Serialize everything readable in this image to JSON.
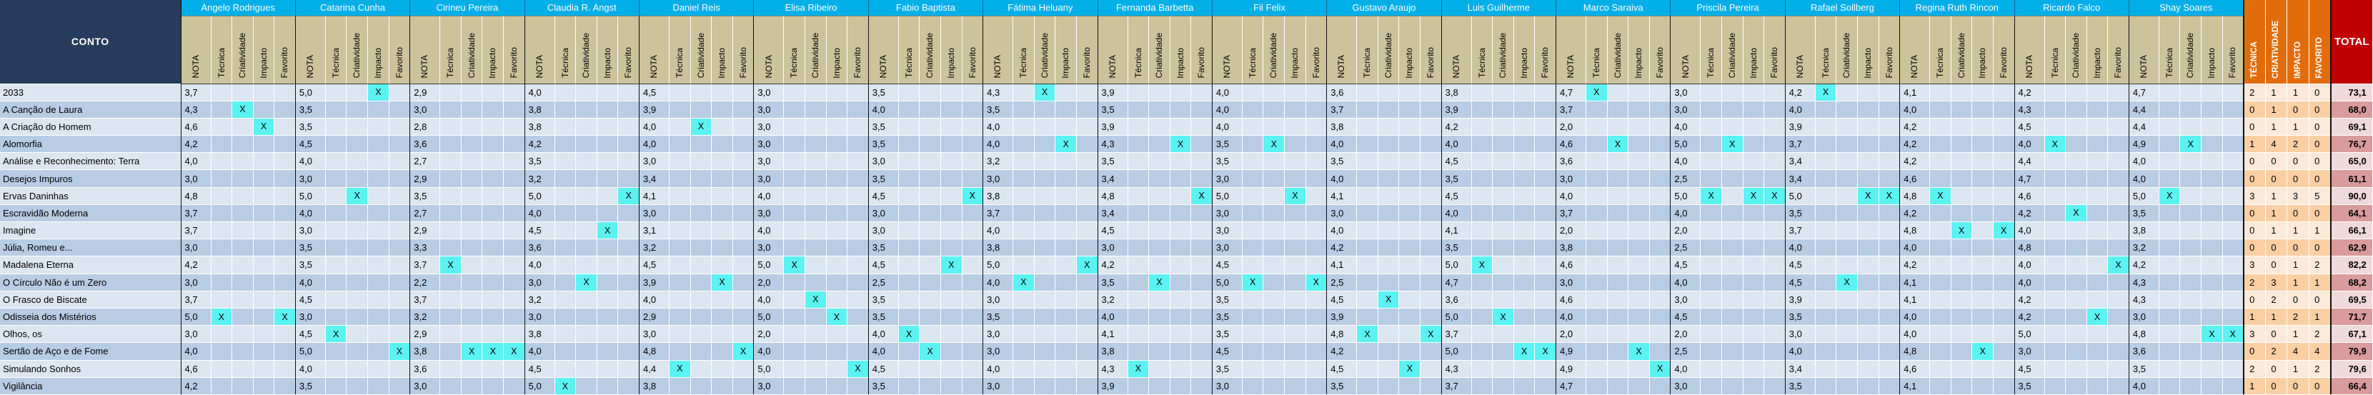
{
  "colors": {
    "header_blue": "#00AEE8",
    "conto_navy": "#263C5D",
    "subheader_tan": "#CBC39C",
    "row_light": "#DCE6F1",
    "row_dark": "#B8CCE4",
    "mark_cyan": "#5BF2F2",
    "summary_orange": "#E36C0A",
    "summary_light": "#FDE9D9",
    "summary_dark": "#FBCFA4",
    "total_red": "#C00000",
    "total_light": "#F0D9DA",
    "total_dark": "#D99B9B"
  },
  "table": {
    "conto_header": "CONTO",
    "mark_glyph": "X",
    "sub_columns": [
      "NOTA",
      "Técnica",
      "Criatividade",
      "Impacto",
      "Favorito"
    ],
    "judges": [
      "Angelo Rodrigues",
      "Catarina Cunha",
      "Cirineu Pereira",
      "Claudia R. Angst",
      "Daniel Reis",
      "Elisa Ribeiro",
      "Fabio Baptista",
      "Fátima Heluany",
      "Fernanda Barbetta",
      "Fil Felix",
      "Gustavo Araujo",
      "Luis Guilherme",
      "Marco Saraiva",
      "Priscila Pereira",
      "Rafael Sollberg",
      "Regina Ruth Rincon",
      "Ricardo Falco",
      "Shay Soares"
    ],
    "summary_columns": [
      "TÉCNICA",
      "CRIATIVIDADE",
      "IMPACTO",
      "FAVORITO"
    ],
    "total_header": "TOTAL",
    "rows": [
      {
        "conto": "2033",
        "notas": [
          "3,7",
          "5,0",
          "2,9",
          "4,0",
          "4,5",
          "3,0",
          "3,5",
          "4,3",
          "3,9",
          "4,0",
          "3,6",
          "3,8",
          "4,7",
          "3,0",
          "4,2",
          "4,1",
          "4,2",
          "4,7"
        ],
        "marks": [
          "",
          "I",
          "",
          "",
          "",
          "",
          "",
          "C",
          "",
          "",
          "",
          "",
          "T",
          "",
          "T",
          "",
          "",
          ""
        ],
        "counts": [
          2,
          1,
          1,
          0
        ],
        "total": "73,1"
      },
      {
        "conto": "A Canção de Laura",
        "notas": [
          "4,3",
          "3,5",
          "3,0",
          "3,8",
          "3,9",
          "3,0",
          "4,0",
          "3,5",
          "3,5",
          "4,0",
          "3,7",
          "3,9",
          "3,7",
          "3,0",
          "4,0",
          "4,0",
          "4,3",
          "4,4"
        ],
        "marks": [
          "C",
          "",
          "",
          "",
          "",
          "",
          "",
          "",
          "",
          "",
          "",
          "",
          "",
          "",
          "",
          "",
          "",
          ""
        ],
        "counts": [
          0,
          1,
          0,
          0
        ],
        "total": "68,0"
      },
      {
        "conto": "A Criação do Homem",
        "notas": [
          "4,6",
          "3,5",
          "2,8",
          "3,8",
          "4,0",
          "3,0",
          "3,5",
          "4,0",
          "3,9",
          "4,0",
          "3,8",
          "4,2",
          "2,0",
          "4,0",
          "3,9",
          "4,2",
          "4,5",
          "4,4"
        ],
        "marks": [
          "I",
          "",
          "",
          "",
          "C",
          "",
          "",
          "",
          "",
          "",
          "",
          "",
          "",
          "",
          "",
          "",
          "",
          ""
        ],
        "counts": [
          0,
          1,
          1,
          0
        ],
        "total": "69,1"
      },
      {
        "conto": "Alomorfia",
        "notas": [
          "4,2",
          "4,5",
          "3,6",
          "4,2",
          "4,0",
          "3,0",
          "3,5",
          "4,0",
          "4,3",
          "3,5",
          "4,0",
          "4,0",
          "4,6",
          "5,0",
          "3,7",
          "4,2",
          "4,0",
          "4,9"
        ],
        "marks": [
          "",
          "",
          "",
          "",
          "",
          "",
          "",
          "I",
          "I",
          "C",
          "",
          "",
          "C",
          "C",
          "",
          "",
          "T",
          "C"
        ],
        "counts": [
          1,
          4,
          2,
          0
        ],
        "total": "76,7"
      },
      {
        "conto": "Análise e Reconhecimento: Terra",
        "notas": [
          "4,0",
          "4,0",
          "2,7",
          "3,5",
          "3,0",
          "3,0",
          "3,0",
          "3,2",
          "3,5",
          "3,5",
          "3,5",
          "4,5",
          "3,6",
          "4,0",
          "3,4",
          "4,2",
          "4,4",
          "4,0"
        ],
        "marks": [
          "",
          "",
          "",
          "",
          "",
          "",
          "",
          "",
          "",
          "",
          "",
          "",
          "",
          "",
          "",
          "",
          "",
          ""
        ],
        "counts": [
          0,
          0,
          0,
          0
        ],
        "total": "65,0"
      },
      {
        "conto": "Desejos Impuros",
        "notas": [
          "3,0",
          "3,0",
          "2,9",
          "3,2",
          "3,4",
          "3,0",
          "3,5",
          "3,0",
          "3,4",
          "3,0",
          "4,0",
          "3,5",
          "3,0",
          "2,5",
          "3,4",
          "4,6",
          "4,7",
          "4,0"
        ],
        "marks": [
          "",
          "",
          "",
          "",
          "",
          "",
          "",
          "",
          "",
          "",
          "",
          "",
          "",
          "",
          "",
          "",
          "",
          ""
        ],
        "counts": [
          0,
          0,
          0,
          0
        ],
        "total": "61,1"
      },
      {
        "conto": "Ervas Daninhas",
        "notas": [
          "4,8",
          "5,0",
          "3,5",
          "5,0",
          "4,1",
          "4,0",
          "4,5",
          "3,8",
          "4,8",
          "5,0",
          "4,1",
          "4,5",
          "4,0",
          "5,0",
          "5,0",
          "4,8",
          "4,6",
          "5,0"
        ],
        "marks": [
          "",
          "C",
          "",
          "F",
          "",
          "",
          "F",
          "",
          "F",
          "I",
          "",
          "",
          "",
          "TIF",
          "IF",
          "T",
          "",
          "T"
        ],
        "counts": [
          3,
          1,
          3,
          5
        ],
        "total": "90,0"
      },
      {
        "conto": "Escravidão Moderna",
        "notas": [
          "3,7",
          "4,0",
          "2,7",
          "4,0",
          "3,0",
          "3,0",
          "3,0",
          "3,7",
          "3,4",
          "3,0",
          "3,0",
          "4,0",
          "3,7",
          "4,0",
          "3,5",
          "4,2",
          "4,2",
          "3,5"
        ],
        "marks": [
          "",
          "",
          "",
          "",
          "",
          "",
          "",
          "",
          "",
          "",
          "",
          "",
          "",
          "",
          "",
          "",
          "C",
          ""
        ],
        "counts": [
          0,
          1,
          0,
          0
        ],
        "total": "64,1"
      },
      {
        "conto": "Imagine",
        "notas": [
          "3,7",
          "3,0",
          "2,9",
          "4,5",
          "3,1",
          "4,0",
          "3,0",
          "4,0",
          "4,5",
          "3,0",
          "4,0",
          "4,1",
          "2,0",
          "2,0",
          "3,7",
          "4,8",
          "4,0",
          "3,8"
        ],
        "marks": [
          "",
          "",
          "",
          "I",
          "",
          "",
          "",
          "",
          "",
          "",
          "",
          "",
          "",
          "",
          "",
          "CF",
          "",
          ""
        ],
        "counts": [
          0,
          1,
          1,
          1
        ],
        "total": "66,1"
      },
      {
        "conto": "Júlia, Romeu e...",
        "notas": [
          "3,0",
          "3,5",
          "3,3",
          "3,6",
          "3,2",
          "3,0",
          "3,5",
          "3,8",
          "3,0",
          "3,0",
          "4,2",
          "3,5",
          "3,8",
          "2,5",
          "4,0",
          "4,0",
          "4,8",
          "3,2"
        ],
        "marks": [
          "",
          "",
          "",
          "",
          "",
          "",
          "",
          "",
          "",
          "",
          "",
          "",
          "",
          "",
          "",
          "",
          "",
          ""
        ],
        "counts": [
          0,
          0,
          0,
          0
        ],
        "total": "62,9"
      },
      {
        "conto": "Madalena Eterna",
        "notas": [
          "4,2",
          "3,5",
          "3,7",
          "4,0",
          "4,5",
          "5,0",
          "4,5",
          "5,0",
          "4,2",
          "4,5",
          "4,1",
          "5,0",
          "4,6",
          "4,5",
          "4,5",
          "4,2",
          "4,0",
          "4,2"
        ],
        "marks": [
          "",
          "",
          "T",
          "",
          "",
          "T",
          "I",
          "F",
          "",
          "",
          "",
          "T",
          "",
          "",
          "",
          "",
          "F",
          ""
        ],
        "counts": [
          3,
          0,
          1,
          2
        ],
        "total": "82,2"
      },
      {
        "conto": "O Círculo Não é um Zero",
        "notas": [
          "3,0",
          "4,0",
          "2,2",
          "3,0",
          "3,9",
          "2,0",
          "2,5",
          "4,0",
          "3,5",
          "5,0",
          "2,5",
          "4,7",
          "3,0",
          "4,0",
          "4,5",
          "4,1",
          "4,0",
          "4,3"
        ],
        "marks": [
          "",
          "",
          "",
          "C",
          "I",
          "",
          "",
          "T",
          "C",
          "TF",
          "",
          "",
          "",
          "",
          "C",
          "",
          "",
          ""
        ],
        "counts": [
          2,
          3,
          1,
          1
        ],
        "total": "68,2"
      },
      {
        "conto": "O Frasco de Biscate",
        "notas": [
          "3,7",
          "4,5",
          "3,7",
          "3,2",
          "4,0",
          "4,0",
          "3,5",
          "3,0",
          "3,2",
          "3,5",
          "4,5",
          "3,6",
          "4,6",
          "3,0",
          "3,9",
          "4,1",
          "4,2",
          "4,3"
        ],
        "marks": [
          "",
          "",
          "",
          "",
          "",
          "C",
          "",
          "",
          "",
          "",
          "C",
          "",
          "",
          "",
          "",
          "",
          "",
          ""
        ],
        "counts": [
          0,
          2,
          0,
          0
        ],
        "total": "69,5"
      },
      {
        "conto": "Odisseia dos Mistérios",
        "notas": [
          "5,0",
          "3,0",
          "3,2",
          "3,0",
          "2,9",
          "5,0",
          "3,5",
          "3,5",
          "4,0",
          "3,5",
          "3,9",
          "5,0",
          "4,0",
          "4,5",
          "3,5",
          "4,0",
          "4,2",
          "3,0"
        ],
        "marks": [
          "TF",
          "",
          "",
          "",
          "",
          "I",
          "",
          "",
          "",
          "",
          "",
          "C",
          "",
          "",
          "",
          "",
          "I",
          ""
        ],
        "counts": [
          1,
          1,
          2,
          1
        ],
        "total": "71,7"
      },
      {
        "conto": "Olhos, os",
        "notas": [
          "3,0",
          "4,5",
          "2,9",
          "3,8",
          "3,0",
          "2,0",
          "4,0",
          "3,0",
          "4,1",
          "3,5",
          "4,8",
          "3,7",
          "2,0",
          "2,0",
          "3,0",
          "4,0",
          "5,0",
          "4,8"
        ],
        "marks": [
          "",
          "T",
          "",
          "",
          "",
          "",
          "T",
          "",
          "",
          "",
          "TF",
          "",
          "",
          "",
          "",
          "",
          "",
          "IF"
        ],
        "counts": [
          3,
          0,
          1,
          2
        ],
        "total": "67,1"
      },
      {
        "conto": "Sertão de Aço e de Fome",
        "notas": [
          "4,0",
          "5,0",
          "3,8",
          "4,0",
          "4,8",
          "4,0",
          "4,0",
          "3,0",
          "3,8",
          "4,5",
          "4,2",
          "5,0",
          "4,9",
          "2,5",
          "4,0",
          "4,8",
          "3,0",
          "3,6"
        ],
        "marks": [
          "",
          "F",
          "CIF",
          "",
          "F",
          "",
          "C",
          "",
          "",
          "",
          "",
          "IF",
          "I",
          "",
          "",
          "I",
          "",
          ""
        ],
        "counts": [
          0,
          2,
          4,
          4
        ],
        "total": "79,9"
      },
      {
        "conto": "Simulando Sonhos",
        "notas": [
          "4,6",
          "4,0",
          "3,6",
          "4,5",
          "4,4",
          "5,0",
          "4,5",
          "4,0",
          "4,3",
          "3,5",
          "4,5",
          "4,3",
          "4,9",
          "4,0",
          "3,4",
          "4,6",
          "4,5",
          "3,5"
        ],
        "marks": [
          "",
          "",
          "",
          "",
          "T",
          "F",
          "",
          "",
          "T",
          "",
          "I",
          "",
          "F",
          "",
          "",
          "",
          "",
          ""
        ],
        "counts": [
          2,
          0,
          1,
          2
        ],
        "total": "79,6"
      },
      {
        "conto": "Vigilância",
        "notas": [
          "4,2",
          "3,5",
          "3,0",
          "5,0",
          "3,8",
          "3,0",
          "3,5",
          "3,0",
          "3,9",
          "3,0",
          "3,5",
          "3,7",
          "4,7",
          "3,0",
          "3,5",
          "4,1",
          "3,5",
          "4,0"
        ],
        "marks": [
          "",
          "",
          "",
          "T",
          "",
          "",
          "",
          "",
          "",
          "",
          "",
          "",
          "",
          "",
          "",
          "",
          "",
          ""
        ],
        "counts": [
          1,
          0,
          0,
          0
        ],
        "total": "66,4"
      }
    ]
  }
}
